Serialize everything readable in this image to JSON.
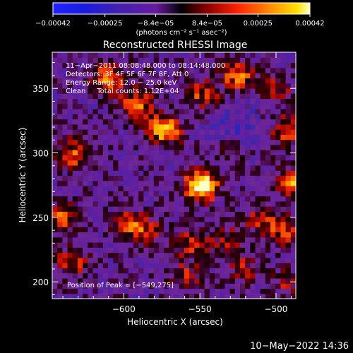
{
  "chart_data": {
    "type": "heatmap",
    "title": "Reconstructed RHESSI Image",
    "xlabel": "Heliocentric X (arcsec)",
    "ylabel": "Heliocentric Y (arcsec)",
    "xlim": [
      -647,
      -487
    ],
    "ylim": [
      187,
      378
    ],
    "xticks": [
      -600,
      -550,
      -500
    ],
    "yticks": [
      200,
      250,
      300,
      350
    ],
    "xtick_labels": [
      "−600",
      "−550",
      "−500"
    ],
    "ytick_labels": [
      "200",
      "250",
      "300",
      "350"
    ],
    "colorbar": {
      "min": -0.00042,
      "max": 0.00042,
      "ticks": [
        "−0.00042",
        "−0.00025",
        "−8.4e−05",
        "8.4e−05",
        "0.00025",
        "0.00042"
      ],
      "units": "(photons cm⁻² s⁻¹ asec⁻²)"
    },
    "annotations": [
      "11−Apr−2011 08:08:48.000 to 08:14:48.000",
      "Detectors: 3F 4F 5F 6F 7F 8F, Att 0",
      "Energy Range: 12.0 − 25.0 keV",
      "Clean     Total counts: 1.12E+04"
    ],
    "peak_label": "Position of Peak = [−549,275]",
    "peak": [
      -549,
      275
    ],
    "sources": [
      {
        "x": -549,
        "y": 275,
        "amp": 1.0
      },
      {
        "x": -573,
        "y": 318,
        "amp": 0.72
      },
      {
        "x": -488,
        "y": 278,
        "amp": 0.62
      },
      {
        "x": -592,
        "y": 338,
        "amp": 0.55
      },
      {
        "x": -610,
        "y": 358,
        "amp": 0.55
      },
      {
        "x": -525,
        "y": 360,
        "amp": 0.55
      },
      {
        "x": -493,
        "y": 318,
        "amp": 0.5
      },
      {
        "x": -632,
        "y": 300,
        "amp": 0.55
      },
      {
        "x": -640,
        "y": 250,
        "amp": 0.5
      },
      {
        "x": -635,
        "y": 215,
        "amp": 0.45
      },
      {
        "x": -598,
        "y": 245,
        "amp": 0.4
      },
      {
        "x": -585,
        "y": 240,
        "amp": 0.35
      },
      {
        "x": -555,
        "y": 230,
        "amp": 0.4
      },
      {
        "x": -530,
        "y": 232,
        "amp": 0.35
      },
      {
        "x": -510,
        "y": 250,
        "amp": 0.35
      },
      {
        "x": -495,
        "y": 240,
        "amp": 0.45
      },
      {
        "x": -560,
        "y": 205,
        "amp": 0.35
      },
      {
        "x": -522,
        "y": 210,
        "amp": 0.3
      },
      {
        "x": -548,
        "y": 345,
        "amp": 0.45
      },
      {
        "x": -500,
        "y": 350,
        "amp": 0.35
      },
      {
        "x": -492,
        "y": 200,
        "amp": 0.3
      },
      {
        "x": -530,
        "y": 300,
        "amp": 0.25
      }
    ]
  },
  "footer": {
    "timestamp": "10−May−2022 14:36"
  }
}
